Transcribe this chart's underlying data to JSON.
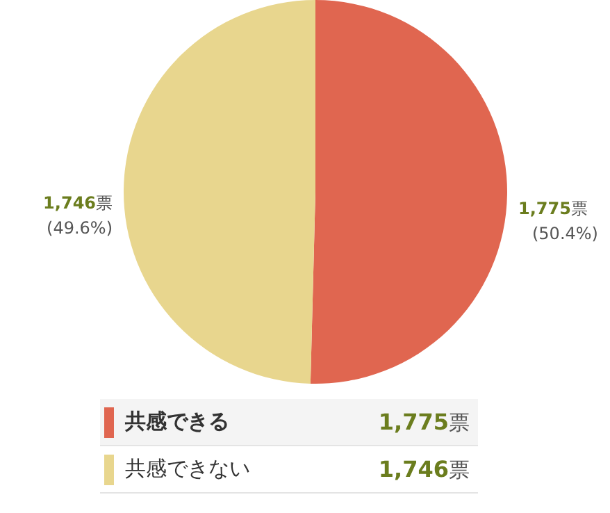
{
  "chart_data": {
    "type": "pie",
    "categories": [
      "共感できる",
      "共感できない"
    ],
    "values": [
      1775,
      1746
    ],
    "colors": [
      "#e06650",
      "#e8d68e"
    ],
    "value_labels": [
      "1,775票\n(50.4%)",
      "1,746票\n(49.6%)"
    ],
    "annotations": [
      "1,775票",
      "1,746票"
    ],
    "legend": "bottom"
  }
}
